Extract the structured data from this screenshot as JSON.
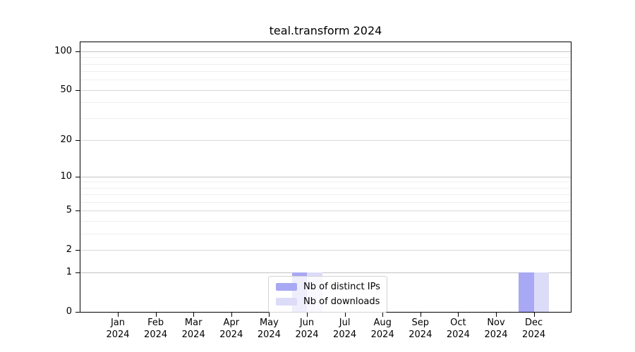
{
  "page": {
    "background": "#ffffff"
  },
  "chart_data": {
    "type": "bar",
    "title": "teal.transform 2024",
    "categories": [
      "Jan",
      "Feb",
      "Mar",
      "Apr",
      "May",
      "Jun",
      "Jul",
      "Aug",
      "Sep",
      "Oct",
      "Nov",
      "Dec"
    ],
    "x_tick_sublabel": "2024",
    "series": [
      {
        "name": "Nb of distinct IPs",
        "color": "#a8a8f4",
        "values": [
          0,
          0,
          0,
          0,
          0,
          1,
          0,
          0,
          0,
          0,
          0,
          1
        ]
      },
      {
        "name": "Nb of downloads",
        "color": "#dcdcf8",
        "values": [
          0,
          0,
          0,
          0,
          0,
          1,
          0,
          0,
          0,
          0,
          0,
          1
        ]
      }
    ],
    "y_axis": {
      "scale": "log1p",
      "min": 0,
      "max": 100,
      "labeled_ticks": [
        0,
        1,
        2,
        5,
        10,
        20,
        50,
        100
      ],
      "minor_gridlines": [
        3,
        4,
        6,
        7,
        8,
        9,
        30,
        40,
        60,
        70,
        80,
        90
      ],
      "emphasized_gridlines": [
        1,
        10,
        100
      ]
    },
    "legend": {
      "position": "bottom-center",
      "entries": [
        {
          "label": "Nb of distinct IPs",
          "color": "#a8a8f4"
        },
        {
          "label": "Nb of downloads",
          "color": "#dcdcf8"
        }
      ]
    },
    "grid": "horizontal",
    "colors": {
      "grid_major": "#d9d9d9",
      "grid_emphasized": "#c3c3c3",
      "grid_minor": "#efefef",
      "axis": "#000000",
      "text": "#000000",
      "legend_border": "#d3d3d3"
    }
  }
}
